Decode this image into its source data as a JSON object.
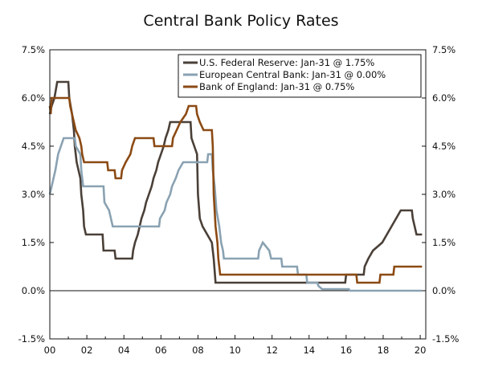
{
  "chart_data": {
    "type": "line",
    "title": "Central Bank Policy Rates",
    "xlabel": "",
    "ylabel": "",
    "x_tick_labels": [
      "00",
      "02",
      "04",
      "06",
      "08",
      "10",
      "12",
      "14",
      "16",
      "18",
      "20"
    ],
    "x_tick_values": [
      2000,
      2002,
      2004,
      2006,
      2008,
      2010,
      2012,
      2014,
      2016,
      2018,
      2020
    ],
    "xlim": [
      2000,
      2020.3
    ],
    "y_tick_labels": [
      "7.5%",
      "6.0%",
      "4.5%",
      "3.0%",
      "1.5%",
      "0.0%",
      "-1.5%"
    ],
    "y_tick_values": [
      7.5,
      6.0,
      4.5,
      3.0,
      1.5,
      0.0,
      -1.5
    ],
    "ylim": [
      -1.5,
      7.5
    ],
    "zero_line": true,
    "legend_position": "top-right",
    "series": [
      {
        "name": "U.S. Federal Reserve: Jan-31 @ 1.75%",
        "color": "#4a4038",
        "points": [
          [
            2000.0,
            5.5
          ],
          [
            2000.1,
            5.75
          ],
          [
            2000.25,
            6.0
          ],
          [
            2000.4,
            6.5
          ],
          [
            2001.0,
            6.5
          ],
          [
            2001.05,
            6.0
          ],
          [
            2001.2,
            5.5
          ],
          [
            2001.3,
            5.0
          ],
          [
            2001.35,
            4.5
          ],
          [
            2001.45,
            4.0
          ],
          [
            2001.55,
            3.75
          ],
          [
            2001.65,
            3.5
          ],
          [
            2001.7,
            3.0
          ],
          [
            2001.8,
            2.5
          ],
          [
            2001.85,
            2.0
          ],
          [
            2001.95,
            1.75
          ],
          [
            2002.85,
            1.75
          ],
          [
            2002.9,
            1.25
          ],
          [
            2003.5,
            1.25
          ],
          [
            2003.55,
            1.0
          ],
          [
            2004.45,
            1.0
          ],
          [
            2004.5,
            1.25
          ],
          [
            2004.6,
            1.5
          ],
          [
            2004.75,
            1.75
          ],
          [
            2004.85,
            2.0
          ],
          [
            2004.95,
            2.25
          ],
          [
            2005.1,
            2.5
          ],
          [
            2005.2,
            2.75
          ],
          [
            2005.35,
            3.0
          ],
          [
            2005.5,
            3.25
          ],
          [
            2005.6,
            3.5
          ],
          [
            2005.75,
            3.75
          ],
          [
            2005.85,
            4.0
          ],
          [
            2006.0,
            4.25
          ],
          [
            2006.15,
            4.5
          ],
          [
            2006.25,
            4.75
          ],
          [
            2006.4,
            5.0
          ],
          [
            2006.5,
            5.25
          ],
          [
            2007.6,
            5.25
          ],
          [
            2007.65,
            4.75
          ],
          [
            2007.8,
            4.5
          ],
          [
            2007.95,
            4.25
          ],
          [
            2008.0,
            3.0
          ],
          [
            2008.1,
            2.25
          ],
          [
            2008.25,
            2.0
          ],
          [
            2008.75,
            1.5
          ],
          [
            2008.85,
            1.0
          ],
          [
            2008.95,
            0.25
          ],
          [
            2015.95,
            0.25
          ],
          [
            2016.0,
            0.5
          ],
          [
            2016.95,
            0.5
          ],
          [
            2017.0,
            0.75
          ],
          [
            2017.2,
            1.0
          ],
          [
            2017.45,
            1.25
          ],
          [
            2017.95,
            1.5
          ],
          [
            2018.2,
            1.75
          ],
          [
            2018.45,
            2.0
          ],
          [
            2018.7,
            2.25
          ],
          [
            2018.95,
            2.5
          ],
          [
            2019.55,
            2.5
          ],
          [
            2019.6,
            2.25
          ],
          [
            2019.7,
            2.0
          ],
          [
            2019.8,
            1.75
          ],
          [
            2020.1,
            1.75
          ]
        ]
      },
      {
        "name": "European Central Bank: Jan-31 @ 0.00%",
        "color": "#8aa2b2",
        "points": [
          [
            2000.0,
            3.0
          ],
          [
            2000.1,
            3.25
          ],
          [
            2000.2,
            3.5
          ],
          [
            2000.3,
            3.75
          ],
          [
            2000.45,
            4.25
          ],
          [
            2000.6,
            4.5
          ],
          [
            2000.75,
            4.75
          ],
          [
            2001.35,
            4.75
          ],
          [
            2001.4,
            4.5
          ],
          [
            2001.65,
            4.25
          ],
          [
            2001.7,
            3.75
          ],
          [
            2001.8,
            3.25
          ],
          [
            2002.9,
            3.25
          ],
          [
            2002.95,
            2.75
          ],
          [
            2003.2,
            2.5
          ],
          [
            2003.4,
            2.0
          ],
          [
            2005.9,
            2.0
          ],
          [
            2005.95,
            2.25
          ],
          [
            2006.2,
            2.5
          ],
          [
            2006.3,
            2.75
          ],
          [
            2006.5,
            3.0
          ],
          [
            2006.6,
            3.25
          ],
          [
            2006.8,
            3.5
          ],
          [
            2006.95,
            3.75
          ],
          [
            2007.2,
            4.0
          ],
          [
            2008.5,
            4.0
          ],
          [
            2008.55,
            4.25
          ],
          [
            2008.75,
            4.25
          ],
          [
            2008.8,
            3.75
          ],
          [
            2008.9,
            3.25
          ],
          [
            2009.0,
            2.5
          ],
          [
            2009.15,
            2.0
          ],
          [
            2009.25,
            1.5
          ],
          [
            2009.35,
            1.25
          ],
          [
            2009.4,
            1.0
          ],
          [
            2011.25,
            1.0
          ],
          [
            2011.3,
            1.25
          ],
          [
            2011.5,
            1.5
          ],
          [
            2011.85,
            1.25
          ],
          [
            2011.95,
            1.0
          ],
          [
            2012.5,
            1.0
          ],
          [
            2012.55,
            0.75
          ],
          [
            2013.35,
            0.75
          ],
          [
            2013.4,
            0.5
          ],
          [
            2013.85,
            0.5
          ],
          [
            2013.9,
            0.25
          ],
          [
            2014.45,
            0.25
          ],
          [
            2014.5,
            0.15
          ],
          [
            2014.7,
            0.05
          ],
          [
            2016.15,
            0.05
          ],
          [
            2016.2,
            0.0
          ],
          [
            2020.1,
            0.0
          ]
        ]
      },
      {
        "name": "Bank of England: Jan-31 @ 0.75%",
        "color": "#8b4a14",
        "points": [
          [
            2000.0,
            5.75
          ],
          [
            2000.05,
            5.5
          ],
          [
            2000.1,
            6.0
          ],
          [
            2001.05,
            6.0
          ],
          [
            2001.1,
            5.75
          ],
          [
            2001.2,
            5.5
          ],
          [
            2001.3,
            5.25
          ],
          [
            2001.4,
            5.0
          ],
          [
            2001.6,
            4.75
          ],
          [
            2001.7,
            4.5
          ],
          [
            2001.75,
            4.25
          ],
          [
            2001.85,
            4.0
          ],
          [
            2003.1,
            4.0
          ],
          [
            2003.15,
            3.75
          ],
          [
            2003.5,
            3.75
          ],
          [
            2003.55,
            3.5
          ],
          [
            2003.85,
            3.5
          ],
          [
            2003.9,
            3.75
          ],
          [
            2004.1,
            4.0
          ],
          [
            2004.35,
            4.25
          ],
          [
            2004.45,
            4.5
          ],
          [
            2004.6,
            4.75
          ],
          [
            2005.6,
            4.75
          ],
          [
            2005.65,
            4.5
          ],
          [
            2006.6,
            4.5
          ],
          [
            2006.65,
            4.75
          ],
          [
            2006.85,
            5.0
          ],
          [
            2007.05,
            5.25
          ],
          [
            2007.35,
            5.5
          ],
          [
            2007.5,
            5.75
          ],
          [
            2007.9,
            5.75
          ],
          [
            2007.95,
            5.5
          ],
          [
            2008.1,
            5.25
          ],
          [
            2008.3,
            5.0
          ],
          [
            2008.75,
            5.0
          ],
          [
            2008.8,
            4.5
          ],
          [
            2008.85,
            3.0
          ],
          [
            2008.95,
            2.0
          ],
          [
            2009.05,
            1.5
          ],
          [
            2009.1,
            1.0
          ],
          [
            2009.2,
            0.5
          ],
          [
            2016.55,
            0.5
          ],
          [
            2016.6,
            0.25
          ],
          [
            2017.8,
            0.25
          ],
          [
            2017.85,
            0.5
          ],
          [
            2018.55,
            0.5
          ],
          [
            2018.6,
            0.75
          ],
          [
            2020.1,
            0.75
          ]
        ]
      }
    ]
  }
}
